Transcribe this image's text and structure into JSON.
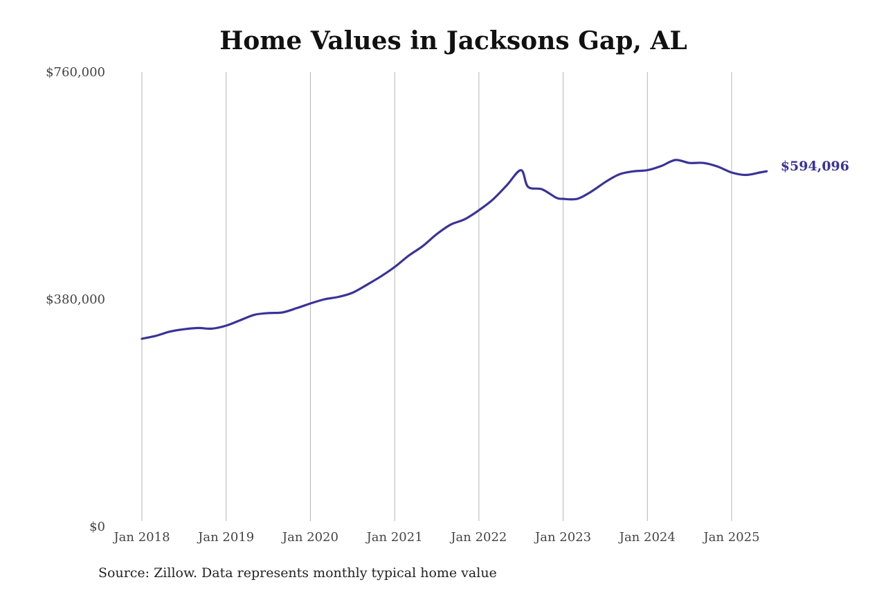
{
  "chart_data": {
    "type": "line",
    "title": "Home Values in Jacksons Gap, AL",
    "source": "Source: Zillow. Data represents monthly typical home value",
    "y_tick_labels": [
      "$0",
      "$380,000",
      "$760,000"
    ],
    "y_ticks": [
      0,
      380000,
      760000
    ],
    "ylim": [
      0,
      760000
    ],
    "x_tick_labels": [
      "Jan 2018",
      "Jan 2019",
      "Jan 2020",
      "Jan 2021",
      "Jan 2022",
      "Jan 2023",
      "Jan 2024",
      "Jan 2025"
    ],
    "x_ticks": [
      "2018-01",
      "2019-01",
      "2020-01",
      "2021-01",
      "2022-01",
      "2023-01",
      "2024-01",
      "2025-01"
    ],
    "xlim": [
      "2018-01",
      "2025-06"
    ],
    "grid": "vertical",
    "line_color": "#3a3399",
    "end_label": "$594,096",
    "series": [
      {
        "points": [
          [
            "2018-01",
            314000
          ],
          [
            "2018-03",
            319000
          ],
          [
            "2018-05",
            326000
          ],
          [
            "2018-07",
            330000
          ],
          [
            "2018-09",
            332000
          ],
          [
            "2018-11",
            331000
          ],
          [
            "2019-01",
            336000
          ],
          [
            "2019-03",
            345000
          ],
          [
            "2019-05",
            354000
          ],
          [
            "2019-07",
            357000
          ],
          [
            "2019-09",
            358000
          ],
          [
            "2019-11",
            365000
          ],
          [
            "2020-01",
            373000
          ],
          [
            "2020-03",
            380000
          ],
          [
            "2020-05",
            384000
          ],
          [
            "2020-07",
            391000
          ],
          [
            "2020-09",
            404000
          ],
          [
            "2020-11",
            418000
          ],
          [
            "2021-01",
            434000
          ],
          [
            "2021-03",
            453000
          ],
          [
            "2021-05",
            469000
          ],
          [
            "2021-07",
            489000
          ],
          [
            "2021-09",
            505000
          ],
          [
            "2021-11",
            514000
          ],
          [
            "2022-01",
            529000
          ],
          [
            "2022-03",
            547000
          ],
          [
            "2022-05",
            571000
          ],
          [
            "2022-07",
            596000
          ],
          [
            "2022-08",
            568000
          ],
          [
            "2022-10",
            564000
          ],
          [
            "2022-12",
            550000
          ],
          [
            "2023-01",
            548000
          ],
          [
            "2023-03",
            548000
          ],
          [
            "2023-05",
            560000
          ],
          [
            "2023-07",
            576000
          ],
          [
            "2023-09",
            589000
          ],
          [
            "2023-11",
            594000
          ],
          [
            "2024-01",
            596000
          ],
          [
            "2024-03",
            603000
          ],
          [
            "2024-05",
            613000
          ],
          [
            "2024-07",
            608000
          ],
          [
            "2024-09",
            608000
          ],
          [
            "2024-11",
            602000
          ],
          [
            "2025-01",
            592000
          ],
          [
            "2025-03",
            588000
          ],
          [
            "2025-05",
            592000
          ],
          [
            "2025-06",
            594096
          ]
        ]
      }
    ]
  }
}
